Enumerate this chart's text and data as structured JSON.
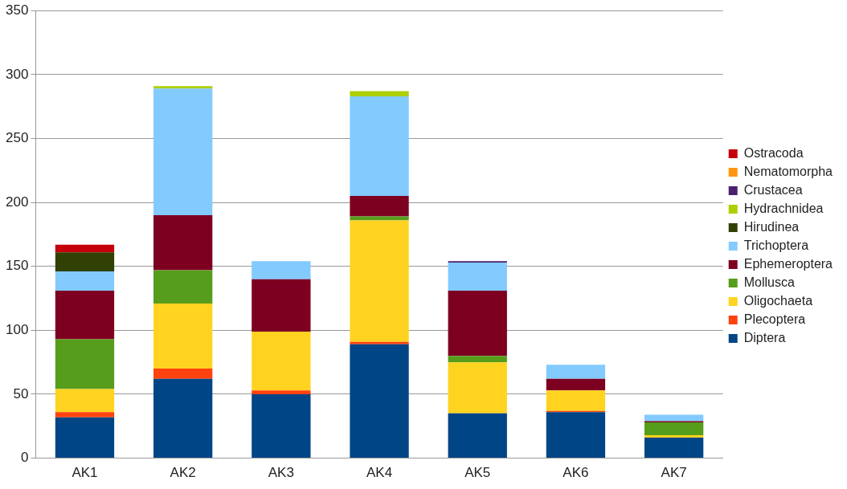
{
  "chart_data": {
    "type": "bar",
    "stacked": true,
    "categories": [
      "AK1",
      "AK2",
      "AK3",
      "AK4",
      "AK5",
      "AK6",
      "AK7"
    ],
    "series": [
      {
        "name": "Diptera",
        "color": "#004586",
        "values": [
          32,
          62,
          50,
          89,
          35,
          36,
          16
        ]
      },
      {
        "name": "Plecoptera",
        "color": "#ff420e",
        "values": [
          4,
          8,
          3,
          2,
          0,
          1,
          0
        ]
      },
      {
        "name": "Oligochaeta",
        "color": "#ffd320",
        "values": [
          18,
          51,
          46,
          95,
          40,
          16,
          2
        ]
      },
      {
        "name": "Mollusca",
        "color": "#579d1c",
        "values": [
          39,
          26,
          0,
          3,
          5,
          0,
          10
        ]
      },
      {
        "name": "Ephemeroptera",
        "color": "#7e0021",
        "values": [
          38,
          43,
          41,
          16,
          51,
          9,
          1
        ]
      },
      {
        "name": "Trichoptera",
        "color": "#83caff",
        "values": [
          15,
          99,
          14,
          78,
          22,
          11,
          5
        ]
      },
      {
        "name": "Hirudinea",
        "color": "#314004",
        "values": [
          15,
          0,
          0,
          0,
          0,
          0,
          0
        ]
      },
      {
        "name": "Hydrachnidea",
        "color": "#aecf00",
        "values": [
          0,
          2,
          0,
          4,
          0,
          0,
          0
        ]
      },
      {
        "name": "Crustacea",
        "color": "#4b1f6f",
        "values": [
          0,
          0,
          0,
          0,
          1,
          0,
          0
        ]
      },
      {
        "name": "Nematomorpha",
        "color": "#ff950e",
        "values": [
          0,
          0,
          0,
          0,
          0,
          0,
          0
        ]
      },
      {
        "name": "Ostracoda",
        "color": "#c5000b",
        "values": [
          6,
          0,
          0,
          0,
          0,
          0,
          0
        ]
      }
    ],
    "ylim": [
      0,
      350
    ],
    "yticks": [
      0,
      50,
      100,
      150,
      200,
      250,
      300,
      350
    ],
    "grid": "y",
    "legend": "right"
  }
}
